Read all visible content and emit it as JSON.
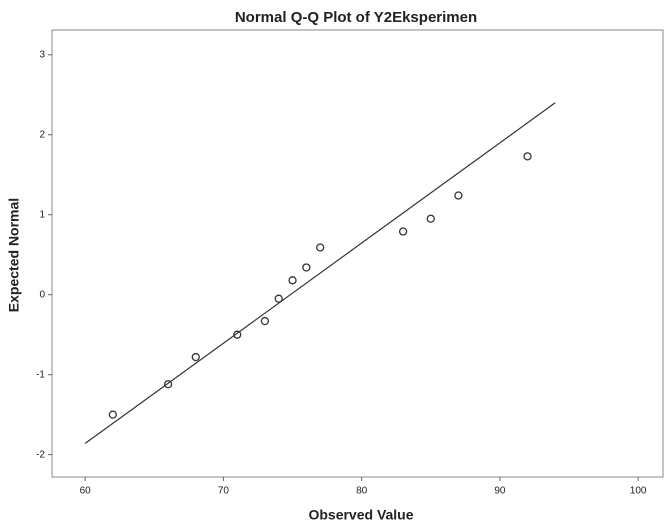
{
  "chart_data": {
    "type": "scatter",
    "title": "Normal Q-Q Plot of Y2Eksperimen",
    "x_label": "Observed Value",
    "y_label": "Expected Normal",
    "x": [
      62,
      66,
      68,
      71,
      73,
      74,
      75,
      76,
      77,
      83,
      85,
      87,
      92
    ],
    "values": [
      -1.5,
      -1.12,
      -0.78,
      -0.5,
      -0.33,
      -0.05,
      0.18,
      0.34,
      0.59,
      0.79,
      0.95,
      1.24,
      1.73
    ],
    "color": "#333333",
    "reference_line": {
      "x": [
        60,
        94
      ],
      "y": [
        -1.86,
        2.4
      ],
      "color": "#333333"
    },
    "xlim": [
      57.6,
      101.8
    ],
    "xticks": [
      60,
      70,
      80,
      90,
      100
    ],
    "ylim": [
      -2.28,
      3.31
    ],
    "yticks": [
      -2,
      -1,
      0,
      1,
      2,
      3
    ]
  }
}
